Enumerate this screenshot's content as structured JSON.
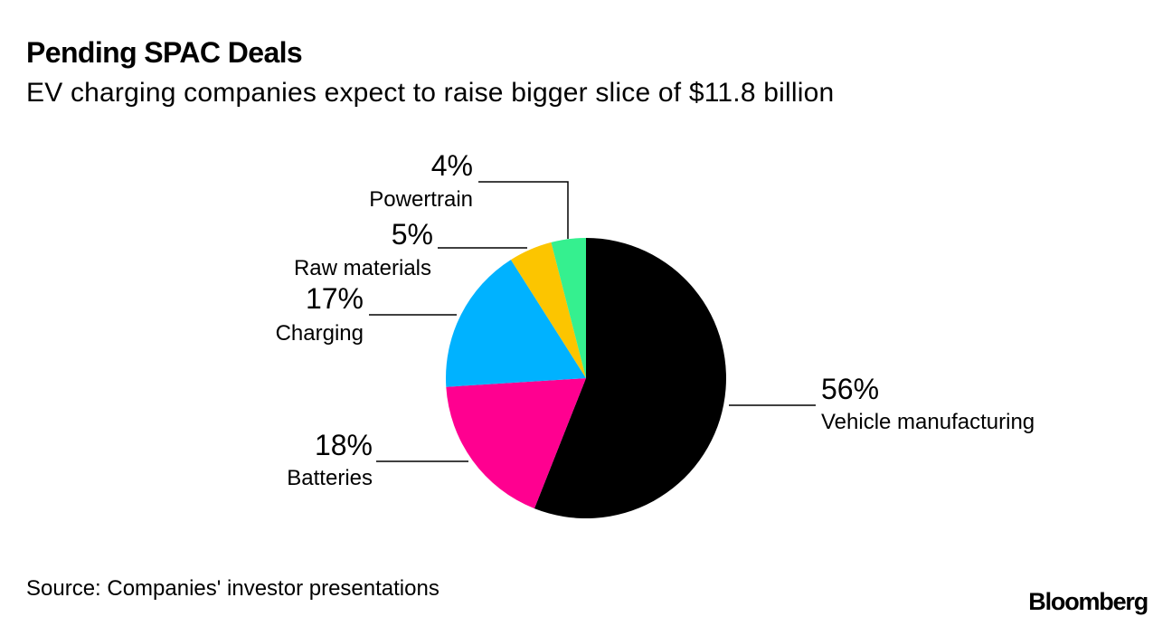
{
  "title": "Pending SPAC Deals",
  "subtitle": "EV charging companies expect to raise bigger slice of $11.8 billion",
  "source": "Source: Companies' investor presentations",
  "brand": "Bloomberg",
  "chart_data": {
    "type": "pie",
    "title": "Pending SPAC Deals",
    "subtitle": "EV charging companies expect to raise bigger slice of $11.8 billion",
    "start": "12 o'clock",
    "direction": "clockwise",
    "slices": [
      {
        "label": "Vehicle manufacturing",
        "value": 56,
        "value_label": "56%",
        "color": "#000000"
      },
      {
        "label": "Batteries",
        "value": 18,
        "value_label": "18%",
        "color": "#ff0090"
      },
      {
        "label": "Charging",
        "value": 17,
        "value_label": "17%",
        "color": "#00b2ff"
      },
      {
        "label": "Raw materials",
        "value": 5,
        "value_label": "5%",
        "color": "#fcc500"
      },
      {
        "label": "Powertrain",
        "value": 4,
        "value_label": "4%",
        "color": "#35f08f"
      }
    ]
  }
}
